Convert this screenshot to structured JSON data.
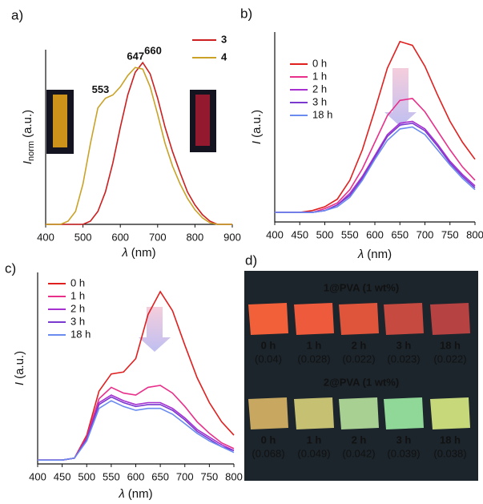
{
  "chart_data": [
    {
      "type": "line",
      "panel_label": "a)",
      "legend": "upper right",
      "legend_bold": true,
      "xlabel": {
        "symbol": "λ",
        "unit": "(nm)"
      },
      "ylabel": {
        "symbol": "I",
        "subscript": "norm",
        "unit": "(a.u.)"
      },
      "xlim": [
        400,
        900
      ],
      "xticks": [
        400,
        500,
        600,
        700,
        800,
        900
      ],
      "ylim": [
        0,
        1.08
      ],
      "x": [
        400,
        420,
        440,
        460,
        480,
        500,
        520,
        540,
        560,
        580,
        600,
        620,
        640,
        660,
        680,
        700,
        720,
        740,
        760,
        780,
        800,
        820,
        840,
        860,
        880,
        900
      ],
      "series": [
        {
          "name": "3",
          "color": "#cc1f1f",
          "peaks": [
            660
          ],
          "values": [
            0,
            0,
            0,
            0,
            0,
            0,
            0.02,
            0.08,
            0.2,
            0.38,
            0.6,
            0.8,
            0.94,
            1.0,
            0.93,
            0.78,
            0.6,
            0.45,
            0.32,
            0.2,
            0.12,
            0.06,
            0.02,
            0,
            0,
            0
          ]
        },
        {
          "name": "4",
          "color": "#c9a227",
          "peaks": [
            553,
            647
          ],
          "values": [
            0,
            0,
            0,
            0.02,
            0.08,
            0.25,
            0.5,
            0.72,
            0.78,
            0.8,
            0.85,
            0.92,
            0.97,
            0.96,
            0.85,
            0.68,
            0.5,
            0.36,
            0.25,
            0.16,
            0.09,
            0.04,
            0.01,
            0,
            0,
            0
          ]
        }
      ]
    },
    {
      "type": "line",
      "panel_label": "b)",
      "legend": "upper left",
      "xlabel": {
        "symbol": "λ",
        "unit": "(nm)"
      },
      "ylabel": {
        "symbol": "I",
        "unit": "(a.u.)"
      },
      "xlim": [
        400,
        800
      ],
      "xticks": [
        400,
        450,
        500,
        550,
        600,
        650,
        700,
        750,
        800
      ],
      "ylim": [
        0,
        1
      ],
      "x": [
        400,
        425,
        450,
        475,
        500,
        525,
        550,
        575,
        600,
        625,
        650,
        675,
        700,
        725,
        750,
        775,
        800
      ],
      "series": [
        {
          "name": "0 h",
          "color": "#e0201f",
          "values": [
            0.05,
            0.05,
            0.05,
            0.06,
            0.08,
            0.12,
            0.22,
            0.38,
            0.59,
            0.81,
            0.95,
            0.93,
            0.82,
            0.67,
            0.53,
            0.42,
            0.33
          ]
        },
        {
          "name": "1 h",
          "color": "#e8308a",
          "values": [
            0.05,
            0.05,
            0.05,
            0.05,
            0.07,
            0.1,
            0.17,
            0.28,
            0.42,
            0.56,
            0.64,
            0.65,
            0.58,
            0.48,
            0.38,
            0.29,
            0.22
          ]
        },
        {
          "name": "2 h",
          "color": "#a630d0",
          "values": [
            0.05,
            0.05,
            0.05,
            0.05,
            0.06,
            0.09,
            0.15,
            0.24,
            0.35,
            0.46,
            0.52,
            0.53,
            0.49,
            0.41,
            0.32,
            0.25,
            0.19
          ]
        },
        {
          "name": "3 h",
          "color": "#7a3ad0",
          "values": [
            0.05,
            0.05,
            0.05,
            0.05,
            0.06,
            0.09,
            0.14,
            0.23,
            0.34,
            0.45,
            0.51,
            0.52,
            0.48,
            0.4,
            0.31,
            0.24,
            0.18
          ]
        },
        {
          "name": "18 h",
          "color": "#6a8cf0",
          "values": [
            0.05,
            0.05,
            0.05,
            0.05,
            0.06,
            0.08,
            0.13,
            0.22,
            0.33,
            0.43,
            0.49,
            0.5,
            0.46,
            0.38,
            0.3,
            0.23,
            0.17
          ]
        }
      ]
    },
    {
      "type": "line",
      "panel_label": "c)",
      "legend": "upper left",
      "xlabel": {
        "symbol": "λ",
        "unit": "(nm)"
      },
      "ylabel": {
        "symbol": "I",
        "unit": "(a.u.)"
      },
      "xlim": [
        400,
        800
      ],
      "xticks": [
        400,
        450,
        500,
        550,
        600,
        650,
        700,
        750,
        800
      ],
      "ylim": [
        0,
        1
      ],
      "x": [
        400,
        425,
        450,
        475,
        500,
        525,
        550,
        575,
        600,
        625,
        650,
        675,
        700,
        725,
        750,
        775,
        800
      ],
      "series": [
        {
          "name": "0 h",
          "color": "#e0201f",
          "values": [
            0.02,
            0.02,
            0.02,
            0.03,
            0.15,
            0.38,
            0.47,
            0.48,
            0.55,
            0.78,
            0.9,
            0.8,
            0.62,
            0.45,
            0.32,
            0.22,
            0.15
          ]
        },
        {
          "name": "1 h",
          "color": "#e8308a",
          "values": [
            0.02,
            0.02,
            0.02,
            0.03,
            0.14,
            0.34,
            0.4,
            0.37,
            0.36,
            0.4,
            0.41,
            0.37,
            0.3,
            0.22,
            0.16,
            0.11,
            0.08
          ]
        },
        {
          "name": "2 h",
          "color": "#a630d0",
          "values": [
            0.02,
            0.02,
            0.02,
            0.03,
            0.13,
            0.32,
            0.36,
            0.33,
            0.31,
            0.32,
            0.32,
            0.29,
            0.24,
            0.18,
            0.14,
            0.1,
            0.07
          ]
        },
        {
          "name": "3 h",
          "color": "#7a3ad0",
          "values": [
            0.02,
            0.02,
            0.02,
            0.03,
            0.13,
            0.31,
            0.35,
            0.32,
            0.3,
            0.31,
            0.31,
            0.28,
            0.23,
            0.17,
            0.13,
            0.09,
            0.07
          ]
        },
        {
          "name": "18 h",
          "color": "#6a8cf0",
          "values": [
            0.02,
            0.02,
            0.02,
            0.03,
            0.12,
            0.29,
            0.33,
            0.3,
            0.28,
            0.29,
            0.29,
            0.26,
            0.21,
            0.16,
            0.12,
            0.09,
            0.06
          ]
        }
      ]
    }
  ],
  "photo_panel": {
    "label": "d)",
    "groups": [
      {
        "title": "1@PVA (1 wt%)",
        "samples": [
          {
            "time": "0 h",
            "value_label": "(0.04)",
            "color": "#f2603a"
          },
          {
            "time": "1 h",
            "value_label": "(0.028)",
            "color": "#ee5a3c"
          },
          {
            "time": "2 h",
            "value_label": "(0.022)",
            "color": "#de553c"
          },
          {
            "time": "3 h",
            "value_label": "(0.023)",
            "color": "#c64a40"
          },
          {
            "time": "18 h",
            "value_label": "(0.022)",
            "color": "#b64242"
          }
        ]
      },
      {
        "title": "2@PVA (1 wt%)",
        "samples": [
          {
            "time": "0 h",
            "value_label": "(0.068)",
            "color": "#c8a860"
          },
          {
            "time": "1 h",
            "value_label": "(0.049)",
            "color": "#c6c072"
          },
          {
            "time": "2 h",
            "value_label": "(0.042)",
            "color": "#a8d092"
          },
          {
            "time": "3 h",
            "value_label": "(0.039)",
            "color": "#90d898"
          },
          {
            "time": "18 h",
            "value_label": "(0.038)",
            "color": "#c6d87a"
          }
        ]
      }
    ]
  }
}
